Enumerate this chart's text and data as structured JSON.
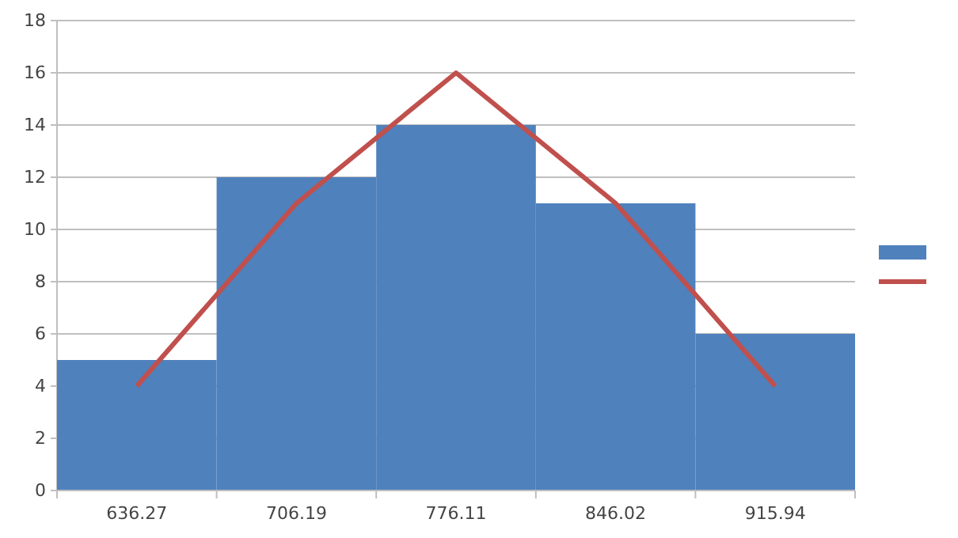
{
  "chart_data": {
    "type": "bar",
    "categories": [
      "636.27",
      "706.19",
      "776.11",
      "846.02",
      "915.94"
    ],
    "series": [
      {
        "color": "#4f81bd",
        "values": [
          5,
          12,
          14,
          11,
          6
        ]
      },
      {
        "type": "line",
        "color": "#c0504d",
        "values": [
          4,
          11,
          16,
          11,
          4
        ]
      }
    ],
    "ylim": [
      0,
      18
    ],
    "yticks": [
      0,
      2,
      4,
      6,
      8,
      10,
      12,
      14,
      16,
      18
    ],
    "grid": "y",
    "line_style": "solid",
    "marker": "none"
  }
}
